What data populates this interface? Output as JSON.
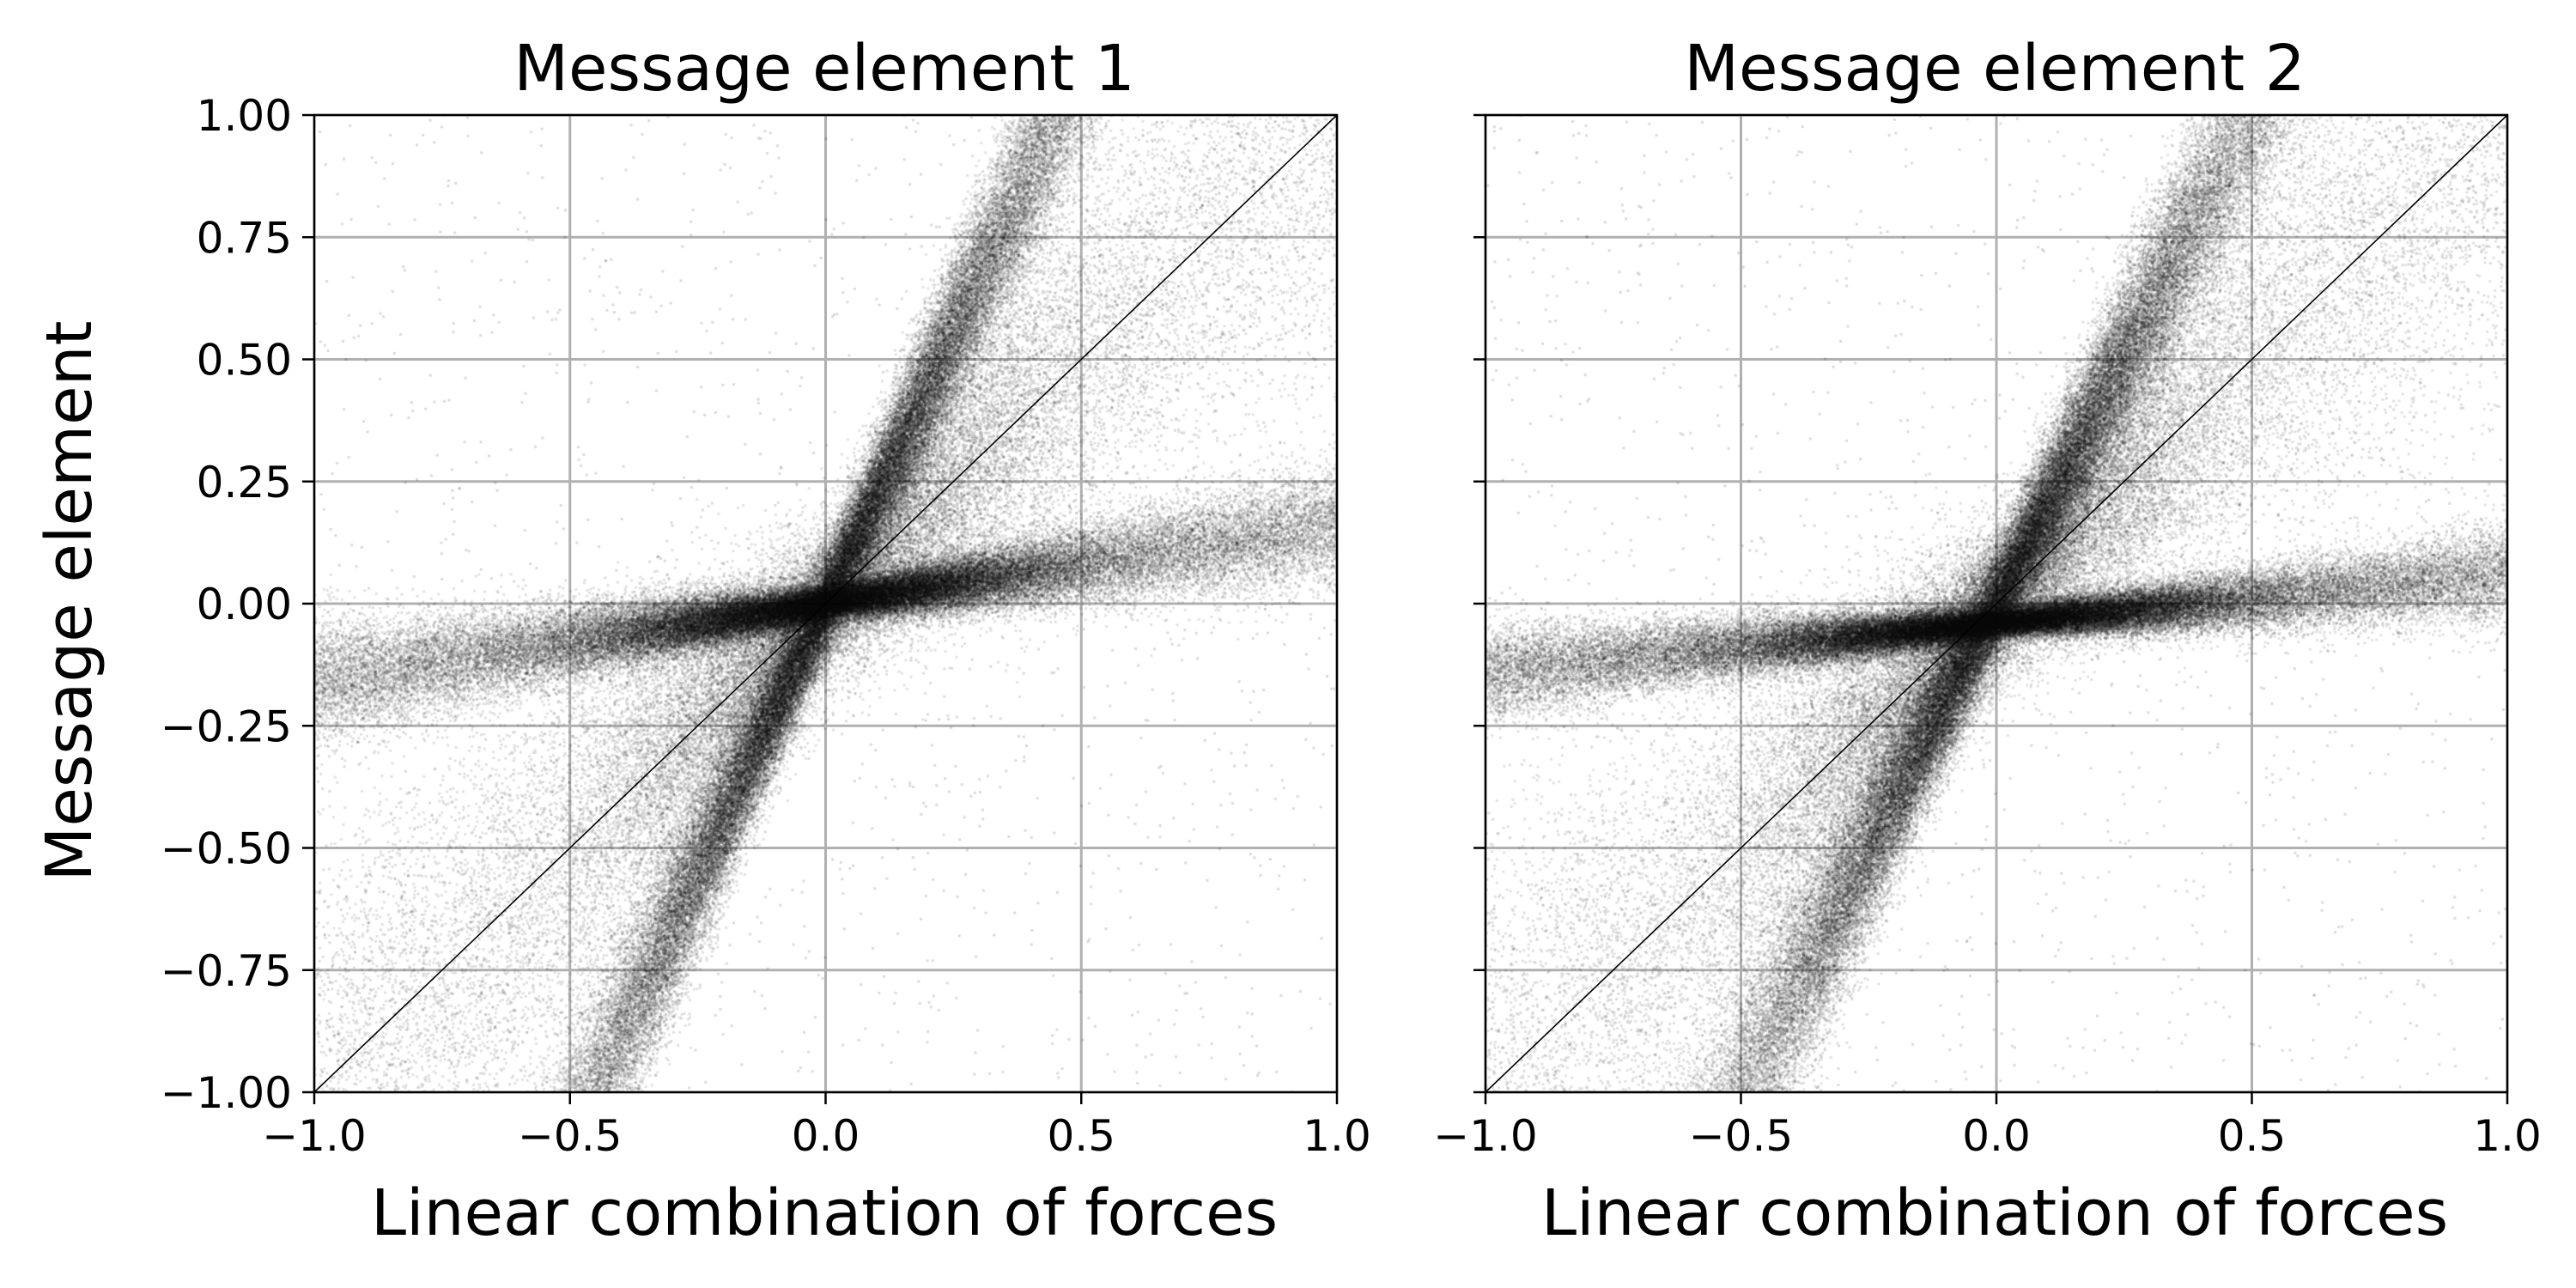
{
  "chart_data": [
    {
      "type": "scatter",
      "title": "Message element 1",
      "xlabel": "Linear combination of forces",
      "ylabel": "Message element",
      "xlim": [
        -1.0,
        1.0
      ],
      "ylim": [
        -1.0,
        1.0
      ],
      "xticks": [
        -1.0,
        -0.5,
        0.0,
        0.5,
        1.0
      ],
      "xtick_labels": [
        "−1.0",
        "−0.5",
        "0.0",
        "0.5",
        "1.0"
      ],
      "yticks": [
        -1.0,
        -0.75,
        -0.5,
        -0.25,
        0.0,
        0.25,
        0.5,
        0.75,
        1.0
      ],
      "ytick_labels": [
        "−1.00",
        "−0.75",
        "−0.50",
        "−0.25",
        "0.00",
        "0.25",
        "0.50",
        "0.75",
        "1.00"
      ],
      "grid": true,
      "point_color": "#000000",
      "reference_line": {
        "x": [
          -1.0,
          1.0
        ],
        "y": [
          -1.0,
          1.0
        ]
      },
      "point_clouds": [
        {
          "shape": "band",
          "slope": 2.2,
          "intercept": 0.0,
          "x_range": [
            -1.0,
            1.0
          ],
          "spread": 0.28
        },
        {
          "shape": "band",
          "slope": 0.16,
          "intercept": 0.0,
          "x_range": [
            -1.0,
            1.0
          ],
          "spread": 0.1
        },
        {
          "shape": "band",
          "slope": 1.0,
          "intercept": 0.0,
          "x_range": [
            -1.0,
            1.0
          ],
          "spread": 0.45
        }
      ]
    },
    {
      "type": "scatter",
      "title": "Message element 2",
      "xlabel": "Linear combination of forces",
      "ylabel": "",
      "xlim": [
        -1.0,
        1.0
      ],
      "ylim": [
        -1.0,
        1.0
      ],
      "xticks": [
        -1.0,
        -0.5,
        0.0,
        0.5,
        1.0
      ],
      "xtick_labels": [
        "−1.0",
        "−0.5",
        "0.0",
        "0.5",
        "1.0"
      ],
      "yticks": [
        -1.0,
        -0.75,
        -0.5,
        -0.25,
        0.0,
        0.25,
        0.5,
        0.75,
        1.0
      ],
      "ytick_labels": [],
      "grid": true,
      "point_color": "#000000",
      "reference_line": {
        "x": [
          -1.0,
          1.0
        ],
        "y": [
          -1.0,
          1.0
        ]
      },
      "point_clouds": [
        {
          "shape": "band",
          "slope": 2.0,
          "intercept": 0.0,
          "x_range": [
            -1.0,
            1.0
          ],
          "spread": 0.3
        },
        {
          "shape": "band",
          "slope": 0.1,
          "intercept": -0.04,
          "x_range": [
            -1.0,
            1.0
          ],
          "spread": 0.08
        },
        {
          "shape": "band",
          "slope": 1.0,
          "intercept": 0.0,
          "x_range": [
            -1.0,
            1.0
          ],
          "spread": 0.45
        }
      ]
    }
  ]
}
